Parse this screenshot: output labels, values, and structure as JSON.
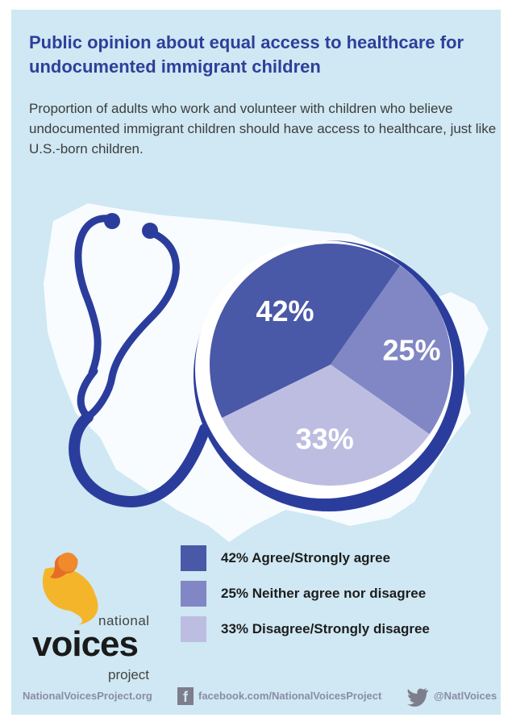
{
  "title": "Public opinion about equal access to healthcare for undocumented immigrant children",
  "subtitle": "Proportion of adults who work and volunteer with children who believe undocumented immigrant children should have access to healthcare, just like U.S.-born children.",
  "chart_data": {
    "type": "pie",
    "title": "Public opinion about equal access to healthcare for undocumented immigrant children",
    "slices": [
      {
        "label": "Agree/Strongly agree",
        "value": 42,
        "display": "42%",
        "color": "#4a58a8"
      },
      {
        "label": "Neither agree nor disagree",
        "value": 25,
        "display": "25%",
        "color": "#8187c4"
      },
      {
        "label": "Disagree/Strongly disagree",
        "value": 33,
        "display": "33%",
        "color": "#bdbde2"
      }
    ],
    "legend": "bottom"
  },
  "legend": [
    {
      "label": "42% Agree/Strongly agree",
      "color": "#4a58a8"
    },
    {
      "label": "25% Neither agree nor disagree",
      "color": "#8187c4"
    },
    {
      "label": "33% Disagree/Strongly disagree",
      "color": "#bdbde2"
    }
  ],
  "logo": {
    "national": "national",
    "voices": "voices",
    "project": "project"
  },
  "footer": {
    "website": "NationalVoicesProject.org",
    "facebook": "facebook.com/NationalVoicesProject",
    "twitter": "@NatlVoices"
  },
  "colors": {
    "background": "#cfe8f3",
    "accent": "#2f3f9a",
    "stethoscope": "#2b3d9c",
    "map": "#ffffff"
  }
}
